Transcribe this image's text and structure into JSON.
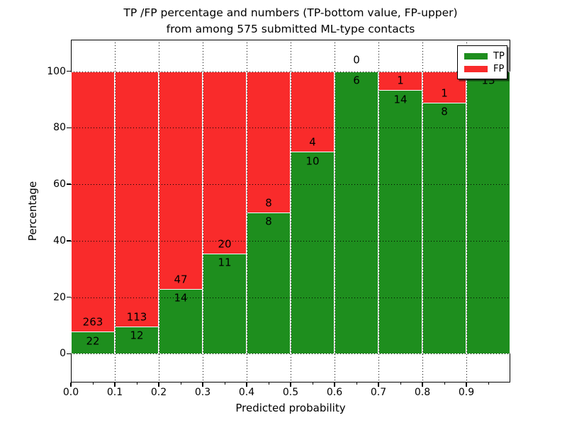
{
  "title": {
    "line1": "TP /FP percentage and numbers (TP-bottom value, FP-upper)",
    "line2": "from among 575 submitted ML-type contacts"
  },
  "axes": {
    "xlabel": "Predicted probability",
    "ylabel": "Percentage"
  },
  "legend": {
    "position": "upper right",
    "items": [
      {
        "label": "TP",
        "color": "#1e8e1e"
      },
      {
        "label": "FP",
        "color": "#f92b2b"
      }
    ]
  },
  "chart_data": {
    "type": "bar",
    "stacked": true,
    "title": "TP /FP percentage and numbers (TP-bottom value, FP-upper) from among 575 submitted ML-type contacts",
    "xlabel": "Predicted probability",
    "ylabel": "Percentage",
    "total_contacts": 575,
    "bin_width": 0.1,
    "bin_starts": [
      0.0,
      0.1,
      0.2,
      0.3,
      0.4,
      0.5,
      0.6,
      0.7,
      0.8,
      0.9
    ],
    "xtick_labels": [
      "0.0",
      "0.1",
      "0.2",
      "0.3",
      "0.4",
      "0.5",
      "0.6",
      "0.7",
      "0.8",
      "0.9"
    ],
    "ytick_values": [
      0,
      20,
      40,
      60,
      80,
      100
    ],
    "xlim": [
      0.0,
      1.0
    ],
    "ylim": [
      -10.3,
      111.2
    ],
    "grid": "dotted black, both axes, drawn over bars",
    "bar_edge_color": "#ffffff",
    "legend_position": "upper right",
    "series": [
      {
        "name": "TP",
        "color": "#1e8e1e",
        "position": "bottom",
        "counts": [
          22,
          12,
          14,
          11,
          8,
          10,
          6,
          14,
          8,
          13
        ]
      },
      {
        "name": "FP",
        "color": "#f92b2b",
        "position": "top",
        "counts": [
          263,
          113,
          47,
          20,
          8,
          4,
          0,
          1,
          1,
          0
        ]
      }
    ],
    "tp_percent_of_bin": [
      7.7,
      9.6,
      23.0,
      35.5,
      50.0,
      71.4,
      100.0,
      93.3,
      88.9,
      100.0
    ]
  }
}
